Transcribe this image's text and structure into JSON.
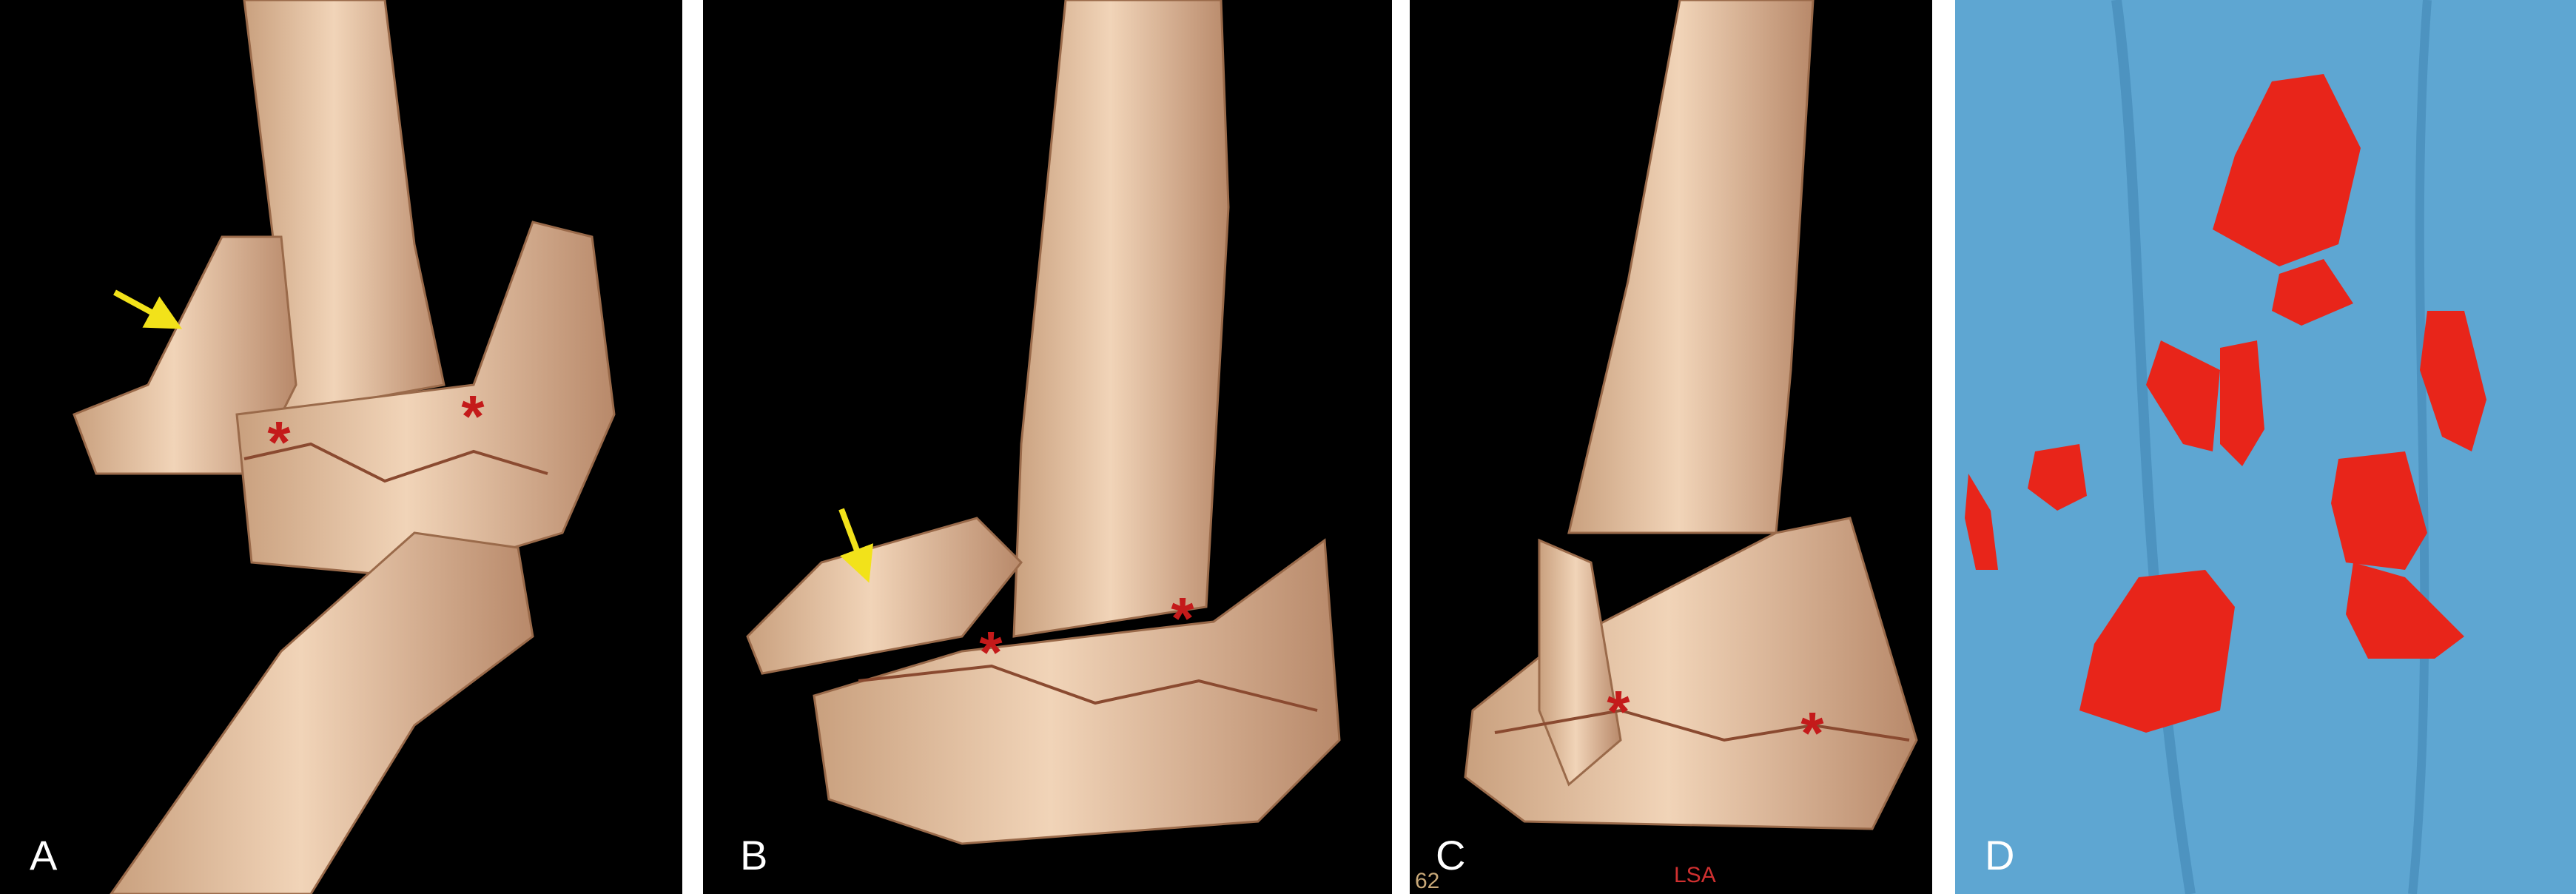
{
  "panels": [
    {
      "label": "A",
      "annotations": [
        "*",
        "*"
      ]
    },
    {
      "label": "B",
      "annotations": [
        "*",
        "*"
      ]
    },
    {
      "label": "C",
      "annotations": [
        "*",
        "*"
      ],
      "overlays": [
        "62",
        "LSA"
      ]
    },
    {
      "label": "D"
    }
  ]
}
